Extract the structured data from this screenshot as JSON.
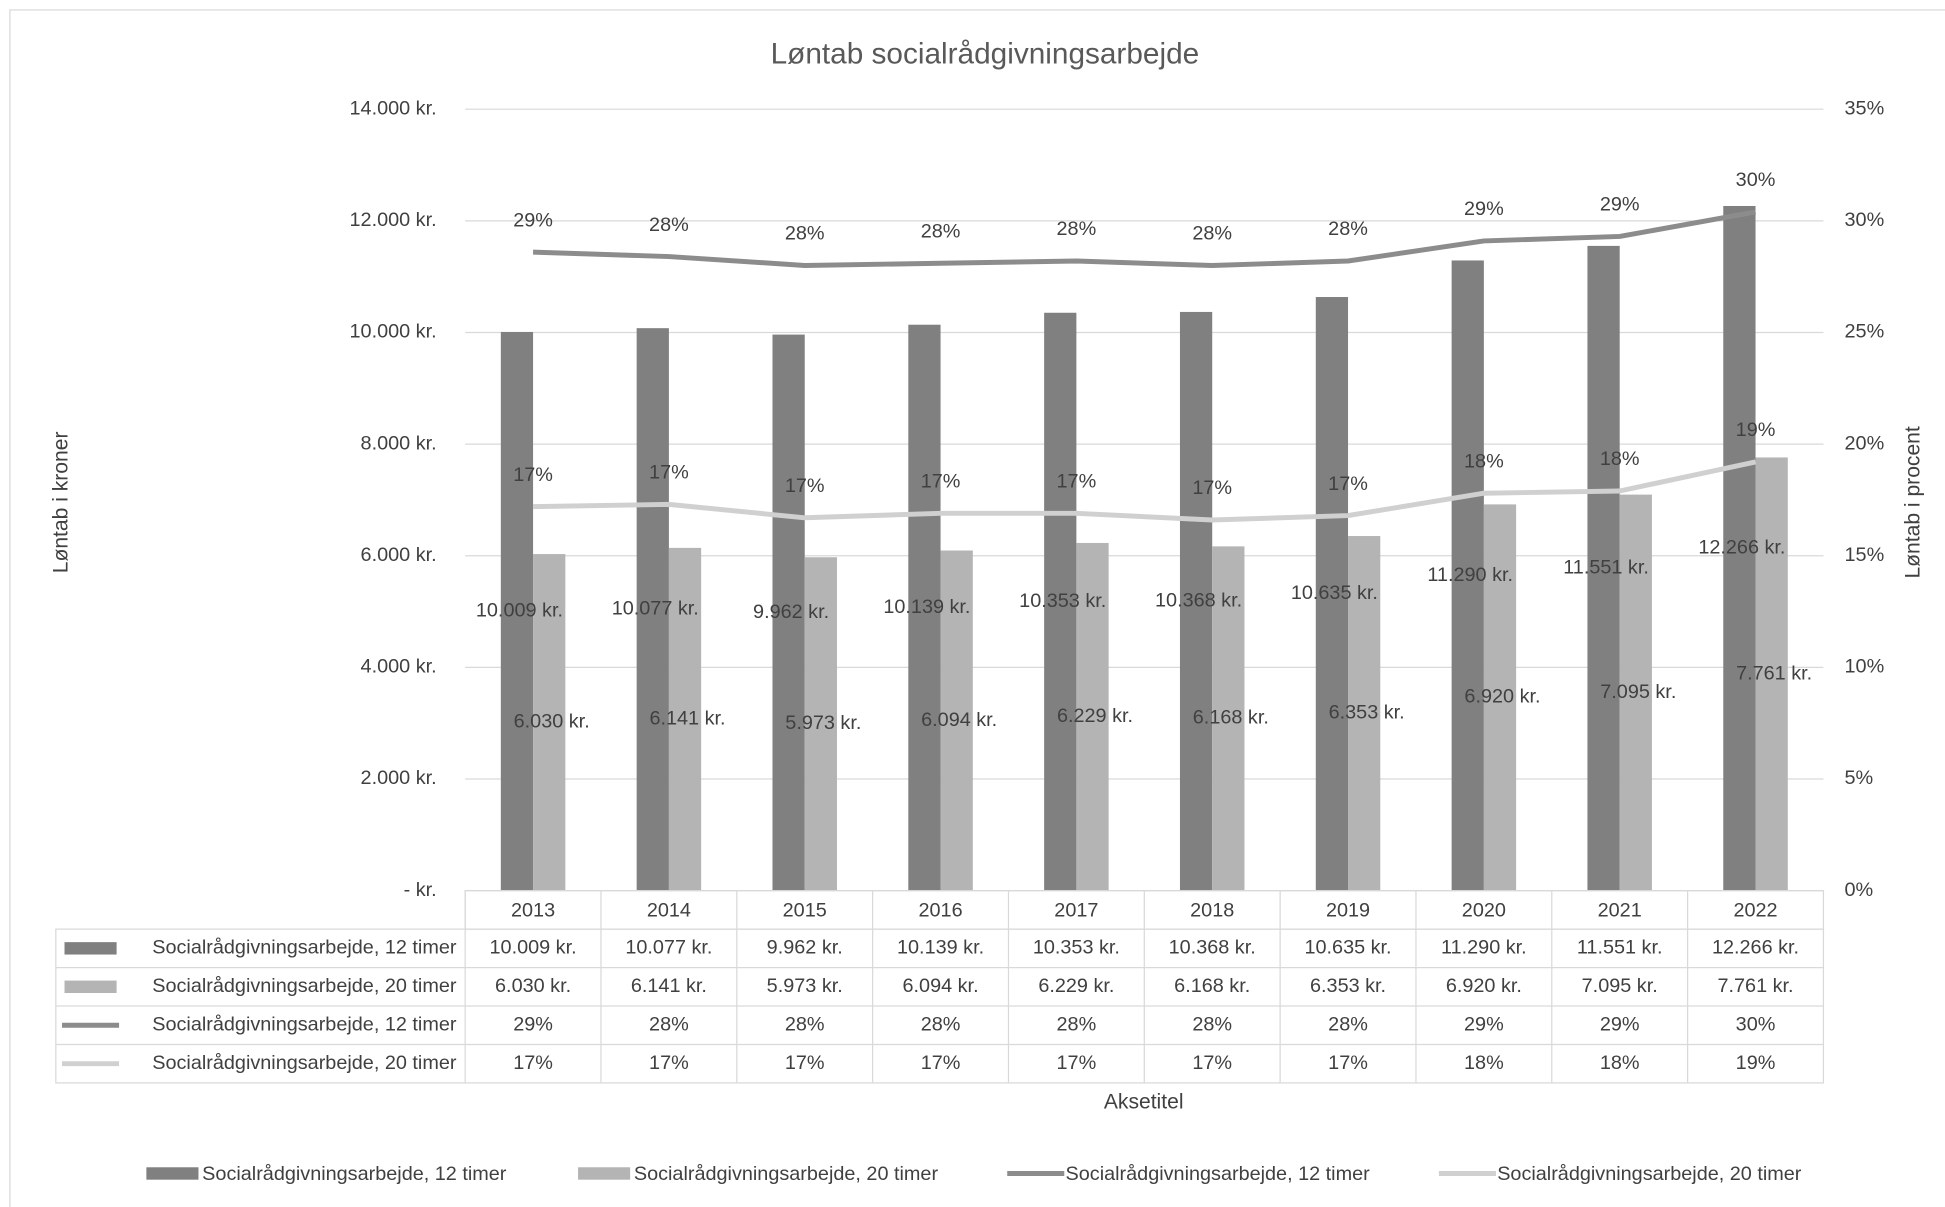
{
  "chart_data": {
    "type": "bar",
    "title": "Løntab socialrådgivningsarbejde",
    "y_label": "Løntab i kroner",
    "y2_label": "Løntab i procent",
    "x_label": "Aksetitel",
    "categories": [
      "2013",
      "2014",
      "2015",
      "2016",
      "2017",
      "2018",
      "2019",
      "2020",
      "2021",
      "2022"
    ],
    "ylim": [
      0,
      14000
    ],
    "yticks": [
      {
        "value": 0,
        "label": "-   kr."
      },
      {
        "value": 2000,
        "label": "2.000 kr."
      },
      {
        "value": 4000,
        "label": "4.000 kr."
      },
      {
        "value": 6000,
        "label": "6.000 kr."
      },
      {
        "value": 8000,
        "label": "8.000 kr."
      },
      {
        "value": 10000,
        "label": "10.000 kr."
      },
      {
        "value": 12000,
        "label": "12.000 kr."
      },
      {
        "value": 14000,
        "label": "14.000 kr."
      }
    ],
    "y2lim": [
      0,
      35
    ],
    "y2ticks": [
      {
        "value": 0,
        "label": "0%"
      },
      {
        "value": 5,
        "label": "5%"
      },
      {
        "value": 10,
        "label": "10%"
      },
      {
        "value": 15,
        "label": "15%"
      },
      {
        "value": 20,
        "label": "20%"
      },
      {
        "value": 25,
        "label": "25%"
      },
      {
        "value": 30,
        "label": "30%"
      },
      {
        "value": 35,
        "label": "35%"
      }
    ],
    "grid": true,
    "data_table": true,
    "legend": "bottom",
    "series": [
      {
        "name": "Socialrådgivningsarbejde, 12 timer",
        "type": "bar",
        "color": "#808080",
        "values": [
          10009,
          10077,
          9962,
          10139,
          10353,
          10368,
          10635,
          11290,
          11551,
          12266
        ],
        "value_labels": [
          "10.009 kr.",
          "10.077 kr.",
          "9.962 kr.",
          "10.139 kr.",
          "10.353 kr.",
          "10.368 kr.",
          "10.635 kr.",
          "11.290 kr.",
          "11.551 kr.",
          "12.266 kr."
        ]
      },
      {
        "name": "Socialrådgivningsarbejde, 20 timer",
        "type": "bar",
        "color": "#b4b4b4",
        "values": [
          6030,
          6141,
          5973,
          6094,
          6229,
          6168,
          6353,
          6920,
          7095,
          7761
        ],
        "value_labels": [
          "6.030 kr.",
          "6.141 kr.",
          "5.973 kr.",
          "6.094 kr.",
          "6.229 kr.",
          "6.168 kr.",
          "6.353 kr.",
          "6.920 kr.",
          "7.095 kr.",
          "7.761 kr."
        ]
      },
      {
        "name": "Socialrådgivningsarbejde, 12 timer",
        "type": "line",
        "axis": "y2",
        "color": "#8c8c8c",
        "values": [
          28.6,
          28.4,
          28.0,
          28.1,
          28.2,
          28.0,
          28.2,
          29.1,
          29.3,
          30.4
        ],
        "value_labels": [
          "29%",
          "28%",
          "28%",
          "28%",
          "28%",
          "28%",
          "28%",
          "29%",
          "29%",
          "30%"
        ]
      },
      {
        "name": "Socialrådgivningsarbejde, 20 timer",
        "type": "line",
        "axis": "y2",
        "color": "#d0d0d0",
        "values": [
          17.2,
          17.3,
          16.7,
          16.9,
          16.9,
          16.6,
          16.8,
          17.8,
          17.9,
          19.2
        ],
        "value_labels": [
          "17%",
          "17%",
          "17%",
          "17%",
          "17%",
          "17%",
          "17%",
          "18%",
          "18%",
          "19%"
        ]
      }
    ]
  }
}
